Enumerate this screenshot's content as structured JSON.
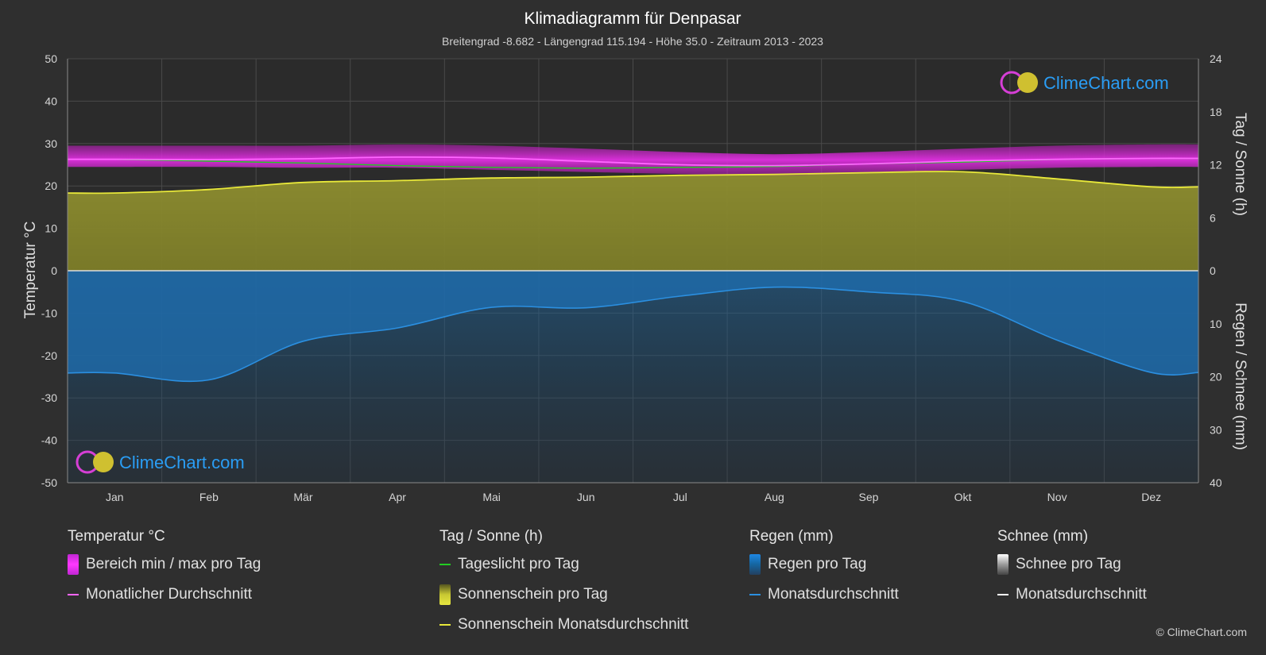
{
  "colors": {
    "background": "#2f2f2f",
    "grid": "#4a4a4a",
    "temp_range": "#c026d3",
    "temp_avg": "#ff66ff",
    "daylight": "#22cc22",
    "sunshine_fill": "#8a8a2e",
    "sunshine_avg": "#e8e83a",
    "rain_fill": "#1b5f8f",
    "rain_avg": "#2b8fe0",
    "snow_avg": "#ffffff",
    "brand_blue": "#2a9df4",
    "brand_magenta": "#d63fd6",
    "brand_yellow": "#e0d030"
  },
  "brand": {
    "logo_text": "ClimeChart.com",
    "copyright": "© ClimeChart.com"
  },
  "chart_data": {
    "type": "area",
    "title": "Klimadiagramm für Denpasar",
    "subtitle": "Breitengrad -8.682 - Längengrad 115.194 - Höhe 35.0 - Zeitraum 2013 - 2023",
    "months": [
      "Jan",
      "Feb",
      "Mär",
      "Apr",
      "Mai",
      "Jun",
      "Jul",
      "Aug",
      "Sep",
      "Okt",
      "Nov",
      "Dez"
    ],
    "y_left": {
      "label": "Temperatur °C",
      "min": -50,
      "max": 50,
      "ticks": [
        50,
        40,
        30,
        20,
        10,
        0,
        -10,
        -20,
        -30,
        -40,
        -50
      ]
    },
    "y_right_top": {
      "label": "Tag / Sonne (h)",
      "min": 0,
      "max": 24,
      "ticks": [
        24,
        18,
        12,
        6,
        0
      ]
    },
    "y_right_bottom": {
      "label": "Regen / Schnee (mm)",
      "min": 0,
      "max": 40,
      "ticks": [
        0,
        10,
        20,
        30,
        40
      ]
    },
    "grid": true,
    "series": {
      "temp_max_daily": [
        29.5,
        29.5,
        29.5,
        29.8,
        29.5,
        28.8,
        28.0,
        27.5,
        28.0,
        28.8,
        29.5,
        29.8
      ],
      "temp_min_daily": [
        24.5,
        24.5,
        24.3,
        24.3,
        23.8,
        23.3,
        22.8,
        22.5,
        23.0,
        23.8,
        24.3,
        24.5
      ],
      "temp_avg_monthly": [
        26.3,
        26.2,
        26.4,
        26.8,
        26.6,
        25.8,
        25.0,
        24.8,
        25.2,
        25.9,
        26.3,
        26.5
      ],
      "daylight_hours": [
        12.6,
        12.4,
        12.2,
        11.9,
        11.7,
        11.6,
        11.7,
        11.8,
        12.1,
        12.3,
        12.6,
        12.7
      ],
      "sunshine_hours": [
        8.8,
        9.2,
        10.0,
        10.2,
        10.5,
        10.6,
        10.8,
        10.9,
        11.1,
        11.2,
        10.4,
        9.5
      ],
      "rain_avg_mm": [
        19.3,
        20.6,
        13.3,
        10.8,
        6.9,
        7.0,
        4.8,
        3.1,
        4.0,
        5.8,
        13.1,
        19.2
      ]
    }
  },
  "legend": {
    "temp": {
      "title": "Temperatur °C",
      "range": "Bereich min / max pro Tag",
      "avg": "Monatlicher Durchschnitt"
    },
    "sun": {
      "title": "Tag / Sonne (h)",
      "daylight": "Tageslicht pro Tag",
      "sunshine": "Sonnenschein pro Tag",
      "sunshine_avg": "Sonnenschein Monatsdurchschnitt"
    },
    "rain": {
      "title": "Regen (mm)",
      "per_day": "Regen pro Tag",
      "avg": "Monatsdurchschnitt"
    },
    "snow": {
      "title": "Schnee (mm)",
      "per_day": "Schnee pro Tag",
      "avg": "Monatsdurchschnitt"
    }
  }
}
